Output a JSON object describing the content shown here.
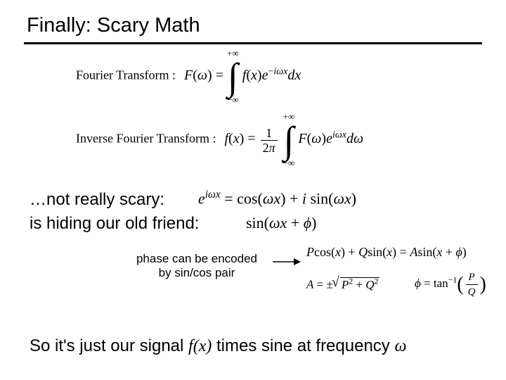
{
  "title": "Finally: Scary Math",
  "colors": {
    "text": "#000000",
    "background": "#ffffff",
    "rule": "#000000"
  },
  "fourier": {
    "label": "Fourier Transform :",
    "lhs_html": "<i>F</i>(<i>ω</i>) =",
    "upper": "+∞",
    "lower": "−∞",
    "integrand_html": "<i>f</i>(<i>x</i>)<i>e</i><sup>−<i>iωx</i></sup><i>dx</i>"
  },
  "inverse": {
    "label": "Inverse Fourier Transform :",
    "lhs_html": "<i>f</i>(<i>x</i>) =",
    "frac_num": "1",
    "frac_den_html": "2<i>π</i>",
    "upper": "+∞",
    "lower": "−∞",
    "integrand_html": "<i>F</i>(<i>ω</i>)<i>e</i><sup><i>iωx</i></sup><i>dω</i>"
  },
  "line1": "…not really scary:",
  "line2": "is hiding our old friend:",
  "euler_html": "<i>e</i><sup><i>iωx</i></sup> = cos(<i>ωx</i>) + <i>i</i> sin(<i>ωx</i>)",
  "hiding_html": "sin(<i>ωx</i> + <i>ϕ</i>)",
  "phase_note_l1": "phase can be encoded",
  "phase_note_l2": "by sin/cos pair",
  "identity_html": "<i>P</i>cos(<i>x</i>) + <i>Q</i>sin(<i>x</i>) = <i>A</i>sin(<i>x</i> + <i>ϕ</i>)",
  "A_lhs_html": "<i>A</i> = ±",
  "A_rad_html": "<i>P</i><sup>2</sup> + <i>Q</i><sup>2</sup>",
  "phi_lhs_html": "<i>ϕ</i> = tan<sup>−1</sup>",
  "phi_frac_num_html": "<i>P</i>",
  "phi_frac_den_html": "<i>Q</i>",
  "final_prefix": "So it's just our signal ",
  "final_fx": "f(x)",
  "final_mid": " times sine at frequency ",
  "final_omega": "ω"
}
